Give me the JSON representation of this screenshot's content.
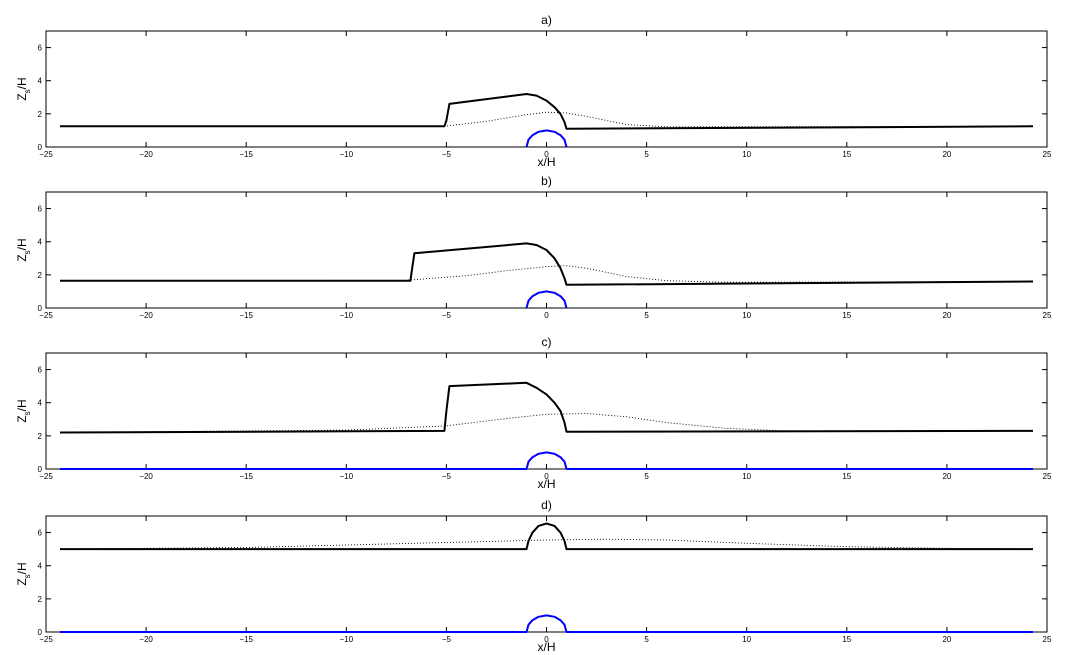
{
  "chart_data": [
    {
      "type": "line",
      "title": "a)",
      "xlabel": "x/H",
      "ylabel": "Z",
      "ylabel_sub": "s",
      "ylabel_tail": "/H",
      "xlim": [
        -25,
        25
      ],
      "ylim": [
        0,
        7
      ],
      "xticks": [
        -25,
        -20,
        -15,
        -10,
        -5,
        0,
        5,
        10,
        15,
        20,
        25
      ],
      "xtick_labels": [
        "−25",
        "−20",
        "−15",
        "−10",
        "−5",
        "0",
        "5",
        "10",
        "15",
        "20",
        "25"
      ],
      "yticks": [
        0,
        2,
        4,
        6
      ],
      "ytick_labels": [
        "0",
        "2",
        "4",
        "6"
      ],
      "grid": false,
      "series": [
        {
          "style": "solid",
          "color": "#000000",
          "x": [
            -24.3,
            -5.1,
            -5.0,
            -4.85,
            -1.0,
            -0.5,
            0.0,
            0.4,
            0.7,
            0.9,
            1.0,
            24.3
          ],
          "y": [
            1.25,
            1.25,
            1.6,
            2.6,
            3.2,
            3.1,
            2.8,
            2.4,
            2.0,
            1.5,
            1.1,
            1.25
          ]
        },
        {
          "style": "dotted",
          "color": "#000000",
          "x": [
            -24.3,
            -5.0,
            -3.0,
            -1.0,
            0.0,
            1.0,
            2.0,
            3.0,
            4.0,
            6.0,
            24.3
          ],
          "y": [
            1.25,
            1.27,
            1.55,
            1.95,
            2.1,
            2.05,
            1.85,
            1.6,
            1.35,
            1.22,
            1.25
          ]
        },
        {
          "style": "solid",
          "color": "#0000ff",
          "x": [
            -1.0,
            -0.9,
            -0.7,
            -0.4,
            0.0,
            0.4,
            0.7,
            0.9,
            1.0
          ],
          "y": [
            0.0,
            0.44,
            0.71,
            0.92,
            1.0,
            0.92,
            0.71,
            0.44,
            0.0
          ]
        }
      ]
    },
    {
      "type": "line",
      "title": "b)",
      "xlabel": "",
      "ylabel": "Z",
      "ylabel_sub": "s",
      "ylabel_tail": "/H",
      "xlim": [
        -25,
        25
      ],
      "ylim": [
        0,
        7
      ],
      "xticks": [
        -25,
        -20,
        -15,
        -10,
        -5,
        0,
        5,
        10,
        15,
        20,
        25
      ],
      "xtick_labels": [
        "−25",
        "−20",
        "−15",
        "−10",
        "−5",
        "0",
        "5",
        "10",
        "15",
        "20",
        "25"
      ],
      "yticks": [
        0,
        2,
        4,
        6
      ],
      "ytick_labels": [
        "0",
        "2",
        "4",
        "6"
      ],
      "grid": false,
      "series": [
        {
          "style": "solid",
          "color": "#000000",
          "x": [
            -24.3,
            -6.8,
            -6.7,
            -6.6,
            -1.0,
            -0.5,
            0.0,
            0.4,
            0.7,
            0.9,
            1.0,
            24.3
          ],
          "y": [
            1.65,
            1.65,
            2.5,
            3.3,
            3.9,
            3.8,
            3.5,
            3.0,
            2.4,
            1.8,
            1.4,
            1.6
          ]
        },
        {
          "style": "dotted",
          "color": "#000000",
          "x": [
            -24.3,
            -7.0,
            -4.0,
            -2.0,
            0.0,
            1.0,
            2.0,
            3.0,
            4.0,
            6.0,
            9.0,
            24.3
          ],
          "y": [
            1.65,
            1.67,
            1.95,
            2.25,
            2.5,
            2.55,
            2.4,
            2.15,
            1.9,
            1.65,
            1.55,
            1.6
          ]
        },
        {
          "style": "solid",
          "color": "#0000ff",
          "x": [
            -1.0,
            -0.9,
            -0.7,
            -0.4,
            0.0,
            0.4,
            0.7,
            0.9,
            1.0
          ],
          "y": [
            0.0,
            0.44,
            0.71,
            0.92,
            1.0,
            0.92,
            0.71,
            0.44,
            0.0
          ]
        }
      ]
    },
    {
      "type": "line",
      "title": "c)",
      "xlabel": "x/H",
      "ylabel": "Z",
      "ylabel_sub": "s",
      "ylabel_tail": "/H",
      "xlim": [
        -25,
        25
      ],
      "ylim": [
        0,
        7
      ],
      "xticks": [
        -25,
        -20,
        -15,
        -10,
        -5,
        0,
        5,
        10,
        15,
        20,
        25
      ],
      "xtick_labels": [
        "−25",
        "−20",
        "−15",
        "−10",
        "−5",
        "0",
        "5",
        "10",
        "15",
        "20",
        "25"
      ],
      "yticks": [
        0,
        2,
        4,
        6
      ],
      "ytick_labels": [
        "0",
        "2",
        "4",
        "6"
      ],
      "grid": false,
      "series": [
        {
          "style": "solid",
          "color": "#000000",
          "x": [
            -24.3,
            -5.1,
            -5.0,
            -4.85,
            -1.0,
            -0.5,
            0.0,
            0.4,
            0.7,
            0.9,
            1.0,
            24.3
          ],
          "y": [
            2.2,
            2.3,
            3.5,
            5.0,
            5.2,
            4.9,
            4.5,
            4.0,
            3.5,
            2.8,
            2.25,
            2.3
          ]
        },
        {
          "style": "dotted",
          "color": "#000000",
          "x": [
            -24.3,
            -10.0,
            -5.0,
            -2.0,
            0.0,
            2.0,
            4.0,
            6.0,
            9.0,
            12.0,
            24.3
          ],
          "y": [
            2.2,
            2.35,
            2.6,
            3.05,
            3.3,
            3.35,
            3.15,
            2.8,
            2.45,
            2.3,
            2.3
          ]
        },
        {
          "style": "solid",
          "color": "#0000ff",
          "x": [
            -24.3,
            -1.0,
            -0.9,
            -0.7,
            -0.4,
            0.0,
            0.4,
            0.7,
            0.9,
            1.0,
            24.3
          ],
          "y": [
            0.0,
            0.0,
            0.44,
            0.71,
            0.92,
            1.0,
            0.92,
            0.71,
            0.44,
            0.0,
            0.0
          ]
        }
      ]
    },
    {
      "type": "line",
      "title": "d)",
      "xlabel": "x/H",
      "ylabel": "Z",
      "ylabel_sub": "s",
      "ylabel_tail": "/H",
      "xlim": [
        -25,
        25
      ],
      "ylim": [
        0,
        7
      ],
      "xticks": [
        -25,
        -20,
        -15,
        -10,
        -5,
        0,
        5,
        10,
        15,
        20,
        25
      ],
      "xtick_labels": [
        "−25",
        "−20",
        "−15",
        "−10",
        "−5",
        "0",
        "5",
        "10",
        "15",
        "20",
        "25"
      ],
      "yticks": [
        0,
        2,
        4,
        6
      ],
      "ytick_labels": [
        "0",
        "2",
        "4",
        "6"
      ],
      "grid": false,
      "series": [
        {
          "style": "solid",
          "color": "#000000",
          "x": [
            -24.3,
            -1.0,
            -0.9,
            -0.7,
            -0.4,
            0.0,
            0.4,
            0.7,
            0.9,
            1.0,
            24.3
          ],
          "y": [
            5.0,
            5.0,
            5.5,
            6.0,
            6.4,
            6.55,
            6.4,
            6.0,
            5.5,
            5.0,
            5.0
          ]
        },
        {
          "style": "dotted",
          "color": "#000000",
          "x": [
            -24.3,
            -15.0,
            -10.0,
            -5.0,
            0.0,
            3.0,
            6.0,
            10.0,
            15.0,
            20.0,
            24.3
          ],
          "y": [
            5.0,
            5.1,
            5.25,
            5.4,
            5.55,
            5.6,
            5.55,
            5.35,
            5.15,
            5.05,
            5.0
          ]
        },
        {
          "style": "solid",
          "color": "#0000ff",
          "x": [
            -24.3,
            -1.0,
            -0.9,
            -0.7,
            -0.4,
            0.0,
            0.4,
            0.7,
            0.9,
            1.0,
            24.3
          ],
          "y": [
            0.0,
            0.0,
            0.44,
            0.71,
            0.92,
            1.0,
            0.92,
            0.71,
            0.44,
            0.0,
            0.0
          ]
        }
      ]
    }
  ]
}
